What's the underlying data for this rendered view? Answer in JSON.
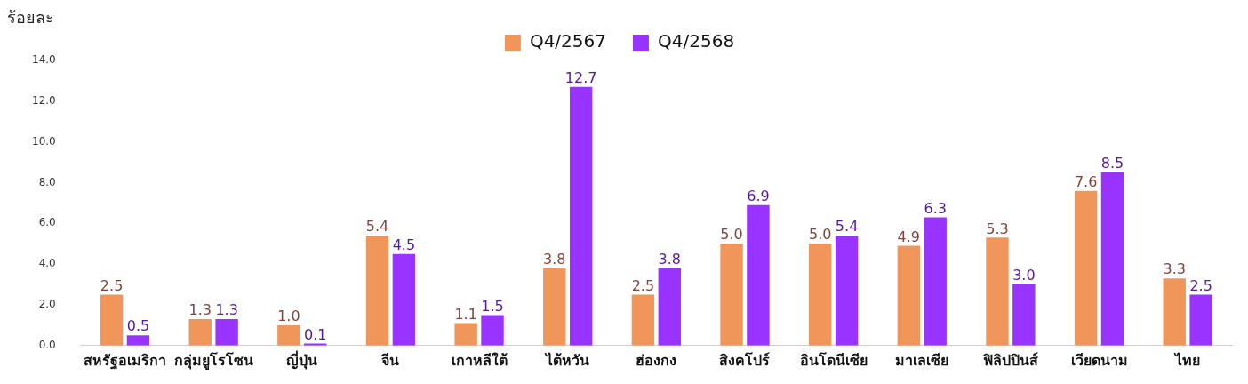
{
  "chart_data": {
    "type": "bar",
    "ylabel": "ร้อยละ",
    "categories": [
      "สหรัฐอเมริกา",
      "กลุ่มยูโรโซน",
      "ญี่ปุ่น",
      "จีน",
      "เกาหลีใต้",
      "ไต้หวัน",
      "ฮ่องกง",
      "สิงคโปร์",
      "อินโดนีเซีย",
      "มาเลเซีย",
      "ฟิลิปปินส์",
      "เวียดนาม",
      "ไทย"
    ],
    "series": [
      {
        "name": "Q4/2567",
        "color": "#f0965a",
        "values": [
          2.5,
          1.3,
          1.0,
          5.4,
          1.1,
          3.8,
          2.5,
          5.0,
          5.0,
          4.9,
          5.3,
          7.6,
          3.3
        ],
        "value_labels": [
          "2.5",
          "1.3",
          "1.0",
          "5.4",
          "1.1",
          "3.8",
          "2.5",
          "5.0",
          "5.0",
          "4.9",
          "5.3",
          "7.6",
          "3.3"
        ]
      },
      {
        "name": "Q4/2568",
        "color": "#9933ff",
        "values": [
          0.5,
          1.3,
          0.1,
          4.5,
          1.5,
          12.7,
          3.8,
          6.9,
          5.4,
          6.3,
          3.0,
          8.5,
          2.5
        ],
        "value_labels": [
          "0.5",
          "1.3",
          "0.1",
          "4.5",
          "1.5",
          "12.7",
          "3.8",
          "6.9",
          "5.4",
          "6.3",
          "3.0",
          "8.5",
          "2.5"
        ]
      }
    ],
    "ylim": [
      0,
      14
    ],
    "yticks": [
      {
        "value": 0,
        "label": "0.0"
      },
      {
        "value": 2,
        "label": "2.0"
      },
      {
        "value": 4,
        "label": "4.0"
      },
      {
        "value": 6,
        "label": "6.0"
      },
      {
        "value": 8,
        "label": "8.0"
      },
      {
        "value": 10,
        "label": "10.0"
      },
      {
        "value": 12,
        "label": "12.0"
      },
      {
        "value": 14,
        "label": "14.0"
      }
    ],
    "grid": false,
    "legend": "top"
  }
}
